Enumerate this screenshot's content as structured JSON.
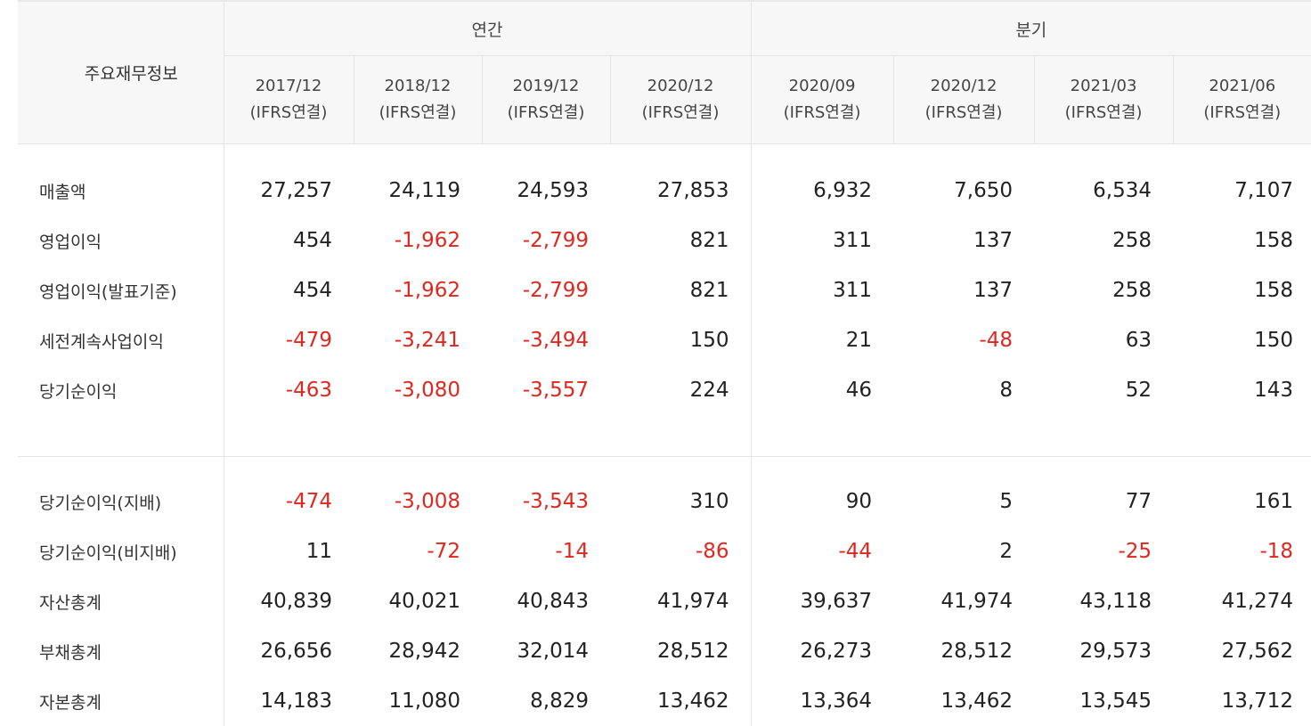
{
  "header": {
    "corner_label": "주요재무정보",
    "group_annual": "연간",
    "group_quarter": "분기",
    "periods": [
      {
        "date": "2017/12",
        "basis": "(IFRS연결)"
      },
      {
        "date": "2018/12",
        "basis": "(IFRS연결)"
      },
      {
        "date": "2019/12",
        "basis": "(IFRS연결)"
      },
      {
        "date": "2020/12",
        "basis": "(IFRS연결)"
      },
      {
        "date": "2020/09",
        "basis": "(IFRS연결)"
      },
      {
        "date": "2020/12",
        "basis": "(IFRS연결)"
      },
      {
        "date": "2021/03",
        "basis": "(IFRS연결)"
      },
      {
        "date": "2021/06",
        "basis": "(IFRS연결)"
      }
    ]
  },
  "rows": [
    {
      "label": "매출액",
      "values": [
        "27,257",
        "24,119",
        "24,593",
        "27,853",
        "6,932",
        "7,650",
        "6,534",
        "7,107"
      ]
    },
    {
      "label": "영업이익",
      "values": [
        "454",
        "-1,962",
        "-2,799",
        "821",
        "311",
        "137",
        "258",
        "158"
      ]
    },
    {
      "label": "영업이익(발표기준)",
      "values": [
        "454",
        "-1,962",
        "-2,799",
        "821",
        "311",
        "137",
        "258",
        "158"
      ]
    },
    {
      "label": "세전계속사업이익",
      "values": [
        "-479",
        "-3,241",
        "-3,494",
        "150",
        "21",
        "-48",
        "63",
        "150"
      ]
    },
    {
      "label": "당기순이익",
      "values": [
        "-463",
        "-3,080",
        "-3,557",
        "224",
        "46",
        "8",
        "52",
        "143"
      ]
    },
    {
      "label": "당기순이익(지배)",
      "values": [
        "-474",
        "-3,008",
        "-3,543",
        "310",
        "90",
        "5",
        "77",
        "161"
      ]
    },
    {
      "label": "당기순이익(비지배)",
      "values": [
        "11",
        "-72",
        "-14",
        "-86",
        "-44",
        "2",
        "-25",
        "-18"
      ]
    },
    {
      "label": "자산총계",
      "values": [
        "40,839",
        "40,021",
        "40,843",
        "41,974",
        "39,637",
        "41,974",
        "43,118",
        "41,274"
      ]
    },
    {
      "label": "부채총계",
      "values": [
        "26,656",
        "28,942",
        "32,014",
        "28,512",
        "26,273",
        "28,512",
        "29,573",
        "27,562"
      ]
    },
    {
      "label": "자본총계",
      "values": [
        "14,183",
        "11,080",
        "8,829",
        "13,462",
        "13,364",
        "13,462",
        "13,545",
        "13,712"
      ]
    }
  ],
  "colors": {
    "negative": "#e0271f",
    "header_bg": "#f7f7f7",
    "border": "#e4e4e4"
  }
}
